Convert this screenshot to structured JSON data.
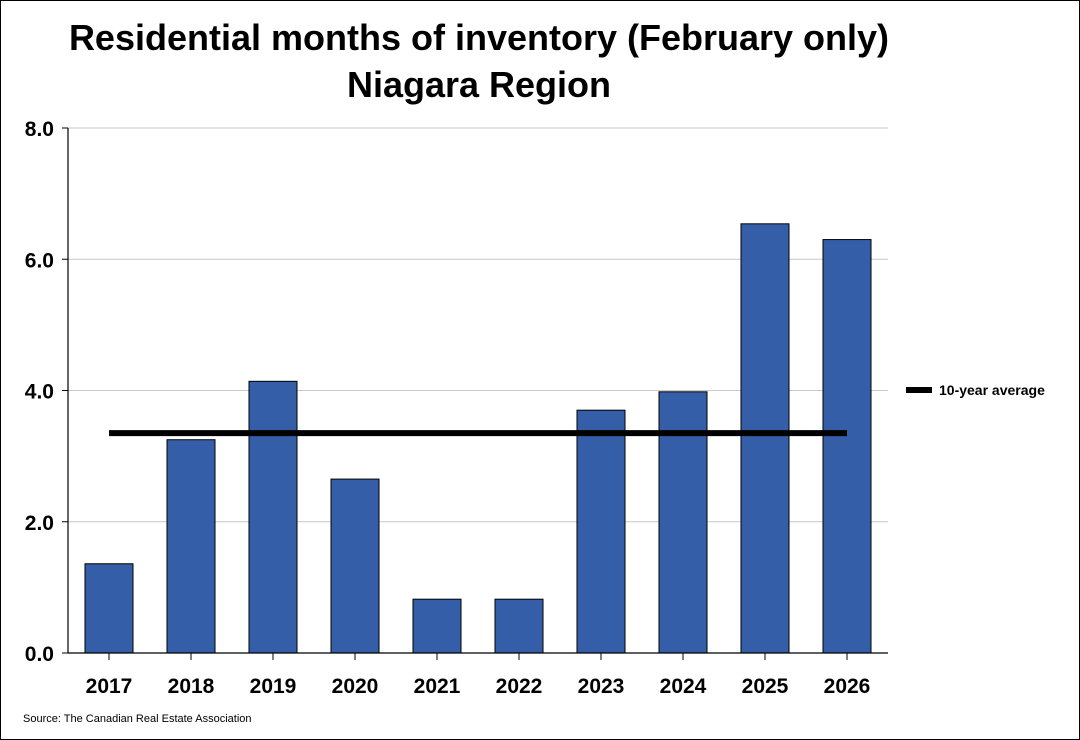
{
  "chart_data": {
    "type": "bar",
    "title": [
      "Residential months of inventory (February only)",
      "Niagara Region"
    ],
    "categories": [
      "2017",
      "2018",
      "2019",
      "2020",
      "2021",
      "2022",
      "2023",
      "2024",
      "2025",
      "2026"
    ],
    "series": [
      {
        "values": [
          1.36,
          3.25,
          4.14,
          2.65,
          0.82,
          0.82,
          3.7,
          3.98,
          6.54,
          6.3
        ],
        "color": "#355ea9"
      }
    ],
    "average_line": {
      "name": "10-year average",
      "value": 3.35,
      "color": "#000000"
    },
    "ylim": [
      0,
      8
    ],
    "yticks": [
      "0.0",
      "2.0",
      "4.0",
      "6.0",
      "8.0"
    ],
    "ytick_values": [
      0,
      2,
      4,
      6,
      8
    ],
    "grid": true,
    "legend_position": "right",
    "xlabel": "",
    "ylabel": ""
  },
  "footer": {
    "source": "Source: The Canadian Real Estate Association"
  }
}
